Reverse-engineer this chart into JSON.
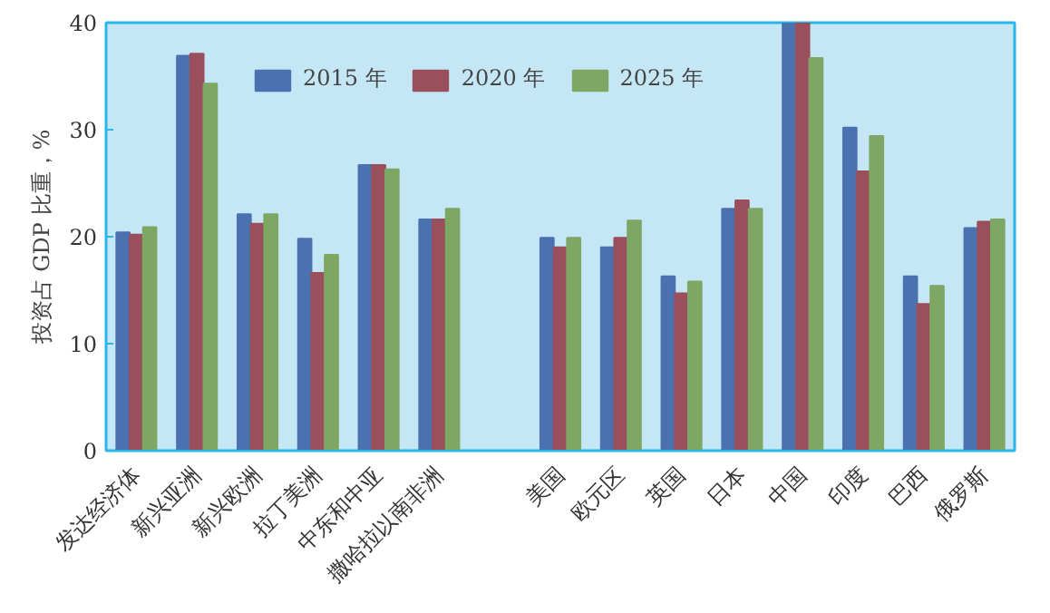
{
  "chart_data": {
    "type": "bar",
    "ylabel": "投资占 GDP 比重，%",
    "categories": [
      "发达经济体",
      "新兴亚洲",
      "新兴欧洲",
      "拉丁美洲",
      "中东和中亚",
      "撒哈拉以南非洲",
      null,
      "美国",
      "欧元区",
      "英国",
      "日本",
      "中国",
      "印度",
      "巴西",
      "俄罗斯"
    ],
    "series": [
      {
        "name": "2015 年",
        "color": "#4a72b0",
        "values": [
          20.4,
          36.9,
          22.1,
          19.8,
          26.7,
          21.6,
          null,
          19.9,
          19.0,
          16.3,
          22.6,
          40,
          30.2,
          16.3,
          20.8
        ]
      },
      {
        "name": "2020 年",
        "color": "#9a4f5c",
        "values": [
          20.2,
          37.1,
          21.2,
          16.6,
          26.7,
          21.6,
          null,
          19.0,
          19.9,
          14.7,
          23.4,
          40,
          26.1,
          13.7,
          21.4
        ]
      },
      {
        "name": "2025 年",
        "color": "#7ea763",
        "values": [
          20.9,
          34.3,
          22.1,
          18.3,
          26.3,
          22.6,
          null,
          19.9,
          21.5,
          15.8,
          22.6,
          36.7,
          29.4,
          15.4,
          21.6
        ]
      }
    ],
    "ylim": [
      0,
      40
    ],
    "yticks": [
      0,
      10,
      20,
      30,
      40
    ],
    "grid": false,
    "legend": "top"
  }
}
